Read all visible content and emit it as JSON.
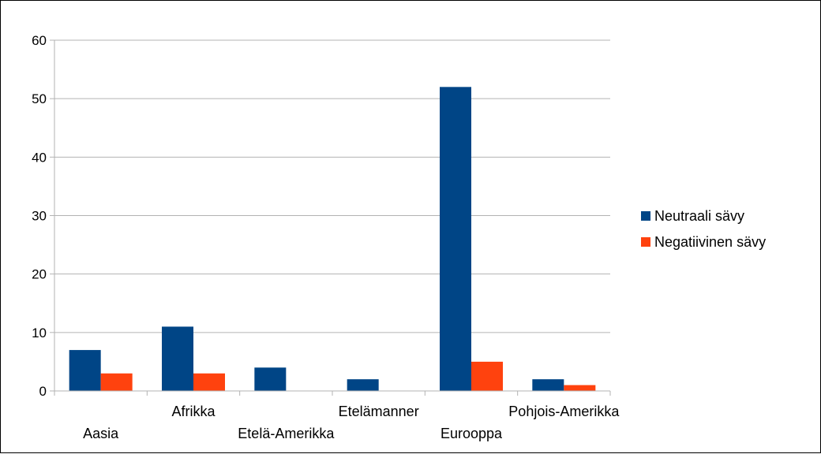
{
  "chart_data": {
    "type": "bar",
    "categories": [
      "Aasia",
      "Afrikka",
      "Etelä-Amerikka",
      "Etelämanner",
      "Eurooppa",
      "Pohjois-Amerikka"
    ],
    "series": [
      {
        "name": "Neutraali sävy",
        "values": [
          7,
          11,
          4,
          2,
          52,
          2
        ],
        "color": "#004586"
      },
      {
        "name": "Negatiivinen sävy",
        "values": [
          3,
          3,
          0,
          0,
          5,
          1
        ],
        "color": "#ff420e"
      }
    ],
    "yticks": [
      "0",
      "10",
      "20",
      "30",
      "40",
      "50",
      "60"
    ],
    "ylim": [
      0,
      60
    ],
    "grid": true,
    "legend": "right"
  }
}
